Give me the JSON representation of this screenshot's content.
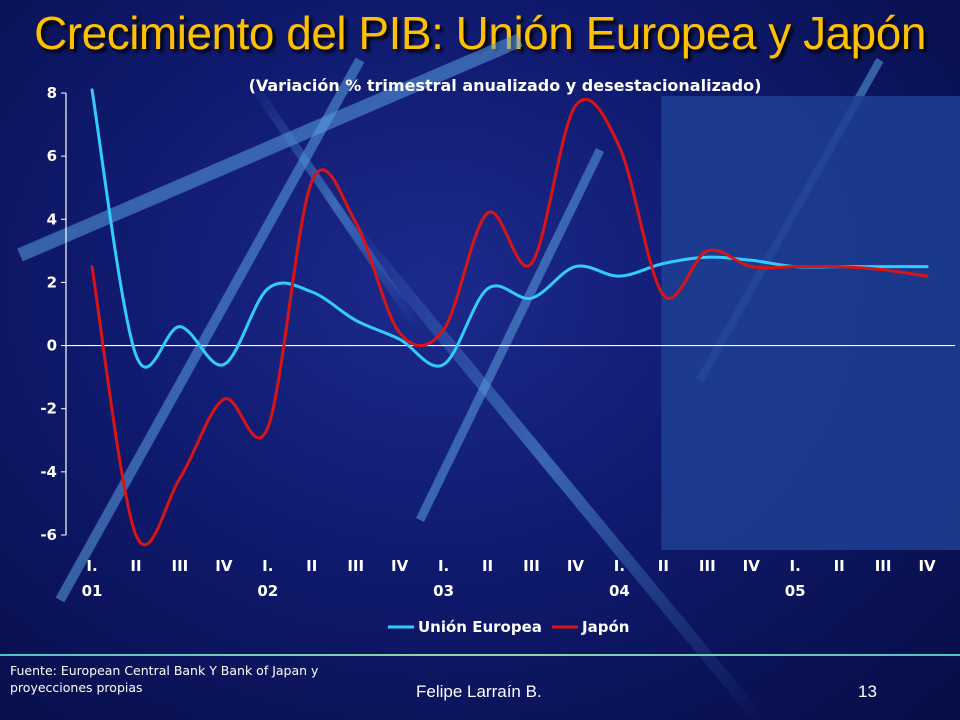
{
  "slide": {
    "title": "Crecimiento del PIB: Unión Europea y Japón",
    "source_note": "Fuente: European Central Bank Y Bank of Japan y proyecciones propias",
    "author": "Felipe Larraín B.",
    "page_number": "13"
  },
  "colors": {
    "title": "#ffc000",
    "union_europea": "#33ccff",
    "japon": "#d91414",
    "projection_shade": "#1e3f93"
  },
  "chart_data": {
    "type": "line",
    "subtitle": "(Variación % trimestral anualizado y desestacionalizado)",
    "x_labels": [
      {
        "quarter": "I.",
        "year": "01"
      },
      {
        "quarter": "II",
        "year": ""
      },
      {
        "quarter": "III",
        "year": ""
      },
      {
        "quarter": "IV",
        "year": ""
      },
      {
        "quarter": "I.",
        "year": "02"
      },
      {
        "quarter": "II",
        "year": ""
      },
      {
        "quarter": "III",
        "year": ""
      },
      {
        "quarter": "IV",
        "year": ""
      },
      {
        "quarter": "I.",
        "year": "03"
      },
      {
        "quarter": "II",
        "year": ""
      },
      {
        "quarter": "III",
        "year": ""
      },
      {
        "quarter": "IV",
        "year": ""
      },
      {
        "quarter": "I.",
        "year": "04"
      },
      {
        "quarter": "II",
        "year": ""
      },
      {
        "quarter": "III",
        "year": ""
      },
      {
        "quarter": "IV",
        "year": ""
      },
      {
        "quarter": "I.",
        "year": "05"
      },
      {
        "quarter": "II",
        "year": ""
      },
      {
        "quarter": "III",
        "year": ""
      },
      {
        "quarter": "IV",
        "year": ""
      }
    ],
    "ylim": [
      -6,
      8
    ],
    "yticks": [
      8,
      6,
      4,
      2,
      0,
      -2,
      -4,
      -6
    ],
    "projection_from_index": 13,
    "series": [
      {
        "name": "Unión Europea",
        "color": "#33ccff",
        "values": [
          8.1,
          -0.3,
          0.6,
          -0.6,
          1.8,
          1.7,
          0.8,
          0.2,
          -0.6,
          1.8,
          1.5,
          2.5,
          2.2,
          2.6,
          2.8,
          2.7,
          2.5,
          2.5,
          2.5,
          2.5
        ]
      },
      {
        "name": "Japón",
        "color": "#d91414",
        "values": [
          2.5,
          -6.0,
          -4.2,
          -1.7,
          -2.6,
          5.2,
          3.9,
          0.4,
          0.5,
          4.2,
          2.6,
          7.6,
          6.3,
          1.6,
          3.0,
          2.5,
          2.5,
          2.5,
          2.4,
          2.2
        ]
      }
    ],
    "legend_position": "bottom"
  }
}
